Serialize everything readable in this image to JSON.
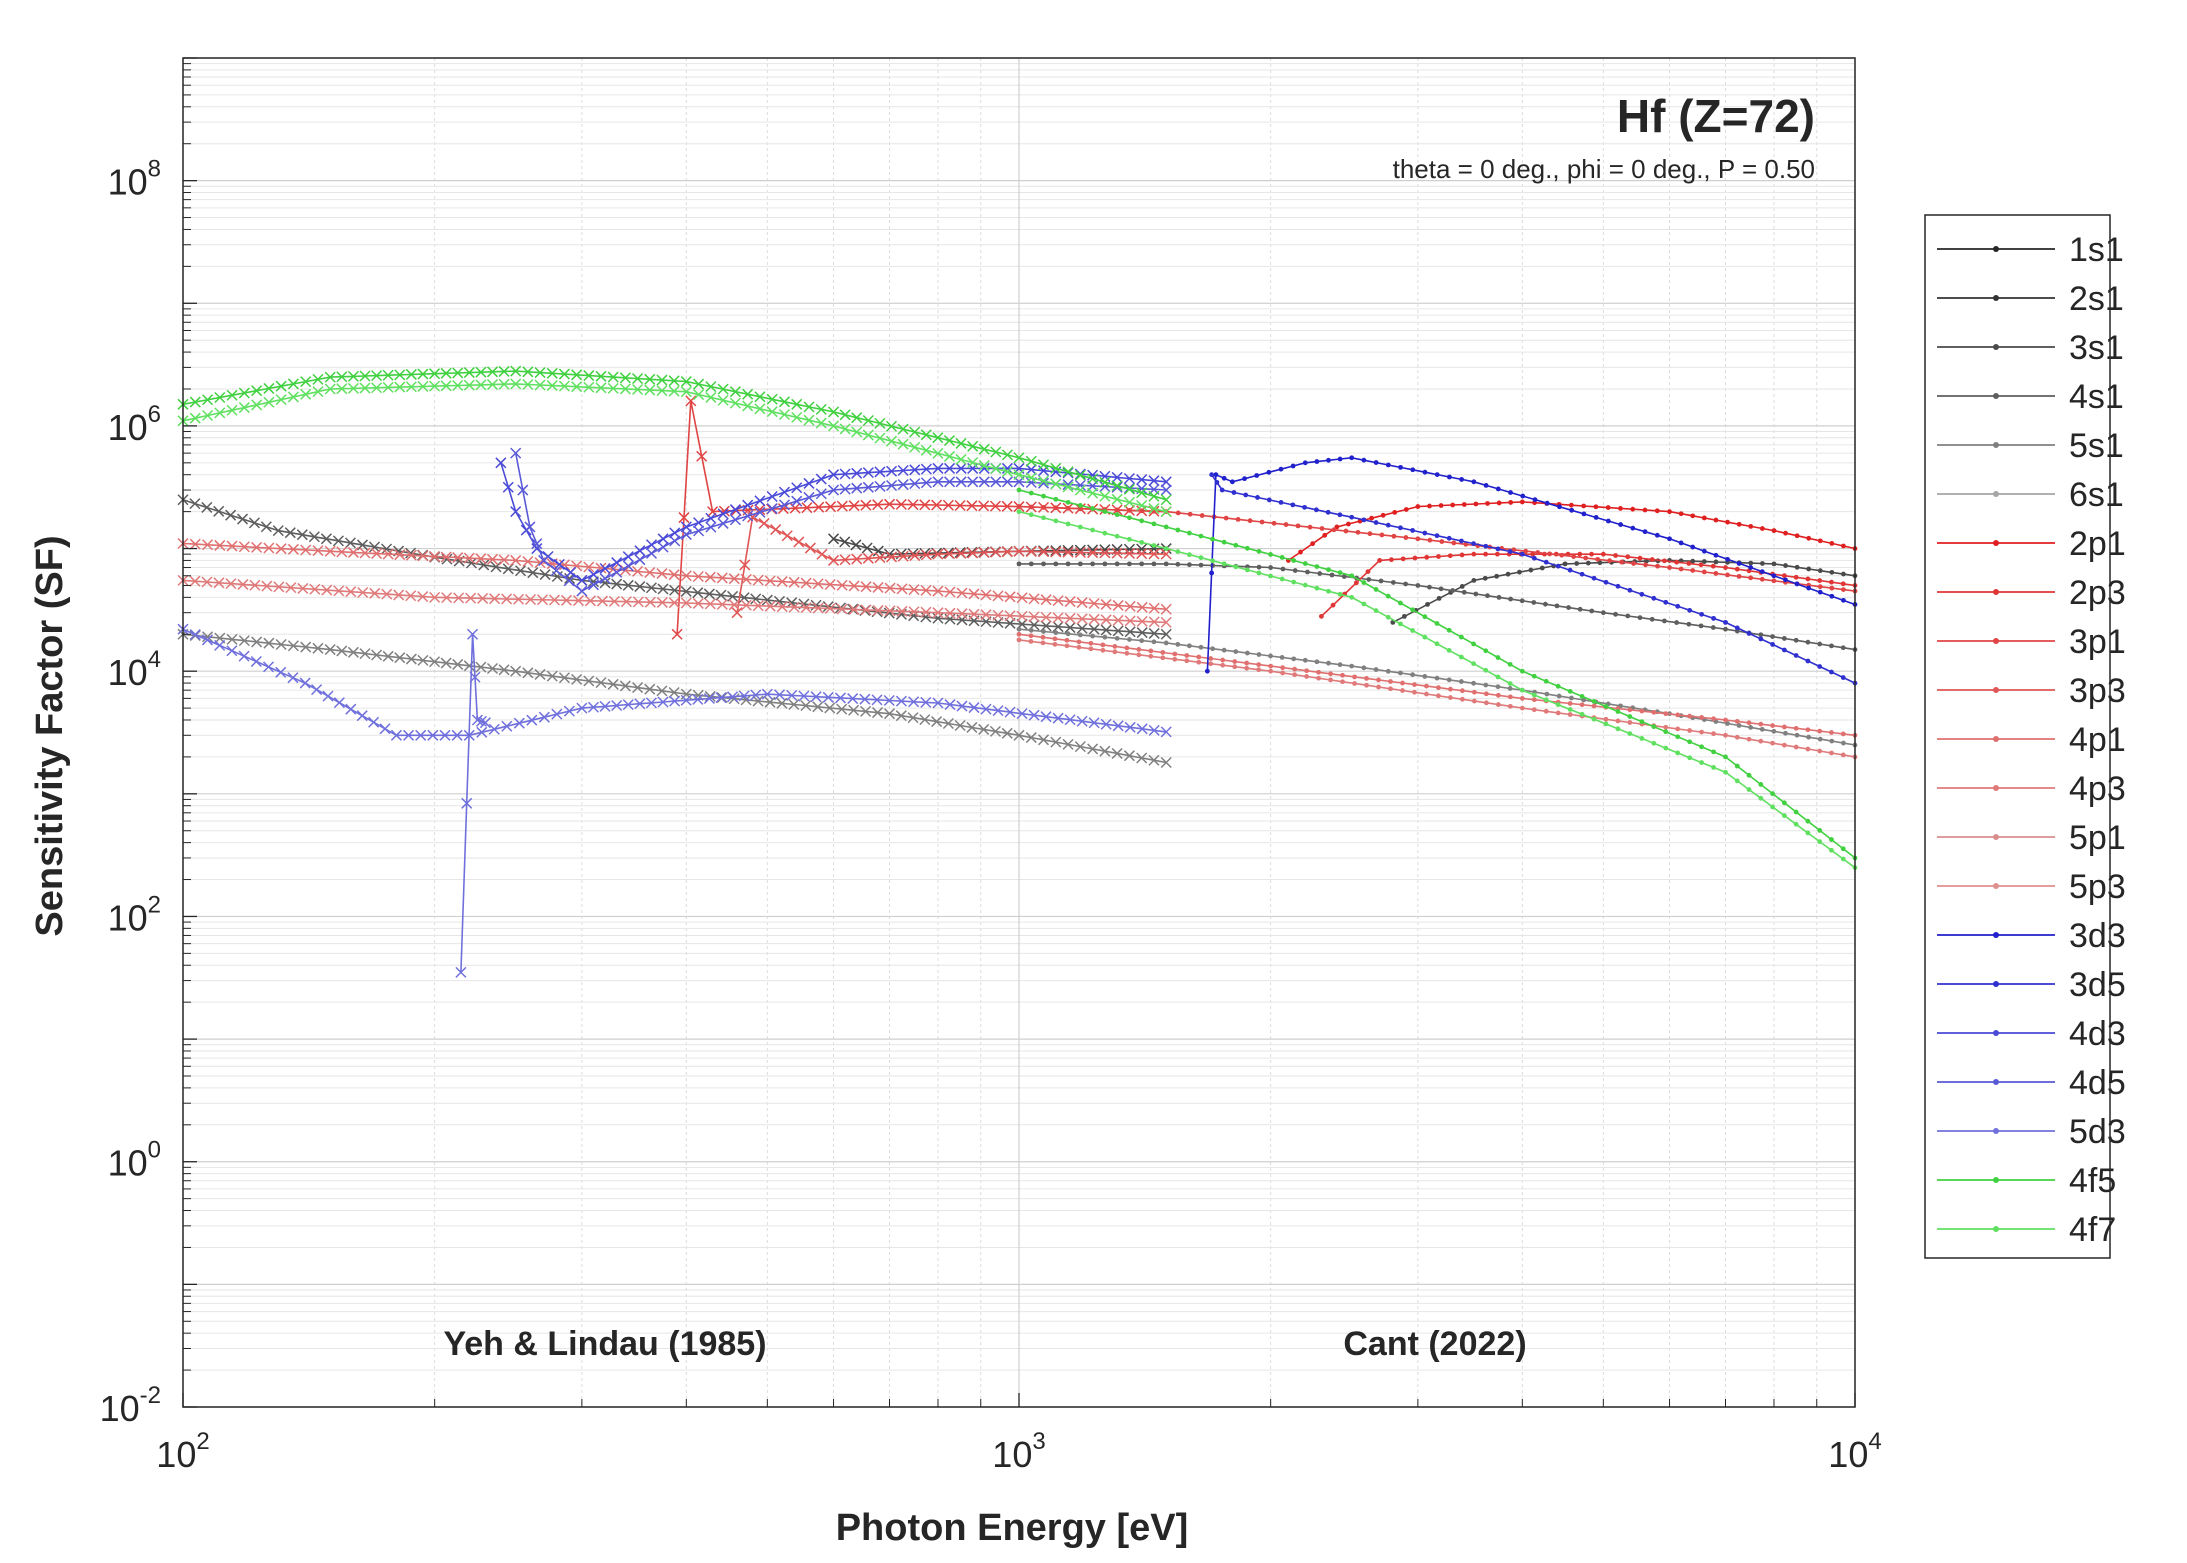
{
  "chart_data": {
    "type": "line",
    "title": "Hf (Z=72)",
    "subtitle": "theta = 0 deg., phi = 0 deg., P = 0.50",
    "xlabel": "Photon Energy [eV]",
    "ylabel": "Sensitivity Factor (SF)",
    "xscale": "log",
    "yscale": "log",
    "xlim": [
      100,
      10000
    ],
    "ylim": [
      0.01,
      1000000000
    ],
    "x_ticks": [
      {
        "value": 100,
        "base": "10",
        "exp": "2"
      },
      {
        "value": 1000,
        "base": "10",
        "exp": "3"
      },
      {
        "value": 10000,
        "base": "10",
        "exp": "4"
      }
    ],
    "y_ticks": [
      {
        "value": 0.01,
        "base": "10",
        "exp": "-2"
      },
      {
        "value": 1,
        "base": "10",
        "exp": "0"
      },
      {
        "value": 100,
        "base": "10",
        "exp": "2"
      },
      {
        "value": 10000,
        "base": "10",
        "exp": "4"
      },
      {
        "value": 1000000,
        "base": "10",
        "exp": "6"
      },
      {
        "value": 100000000,
        "base": "10",
        "exp": "8"
      }
    ],
    "grid": true,
    "legend_position": "right-outside",
    "annotations": [
      "Yeh & Lindau (1985)",
      "Cant (2022)"
    ],
    "series": [
      {
        "name": "1s1",
        "color": "#262626",
        "segments": []
      },
      {
        "name": "2s1",
        "color": "#333333",
        "segments": []
      },
      {
        "name": "3s1",
        "color": "#4a4a4a",
        "segments": [
          {
            "marker": "x",
            "x": [
              600,
              700,
              1000,
              1500
            ],
            "y": [
              120000,
              90000,
              95000,
              100000
            ]
          },
          {
            "marker": "dot",
            "x": [
              2800,
              3500,
              4500,
              6000,
              8000,
              10000
            ],
            "y": [
              25000,
              55000,
              75000,
              80000,
              75000,
              60000
            ]
          }
        ]
      },
      {
        "name": "4s1",
        "color": "#5e5e5e",
        "segments": [
          {
            "marker": "x",
            "x": [
              100,
              130,
              200,
              300,
              500,
              800,
              1500
            ],
            "y": [
              250000,
              140000,
              85000,
              55000,
              38000,
              27000,
              20000
            ]
          },
          {
            "marker": "dot",
            "x": [
              1000,
              1500,
              2000,
              3000,
              5000,
              7000,
              10000
            ],
            "y": [
              75000,
              75000,
              70000,
              50000,
              30000,
              22000,
              15000
            ]
          }
        ]
      },
      {
        "name": "5s1",
        "color": "#808080",
        "segments": [
          {
            "marker": "x",
            "x": [
              100,
              150,
              250,
              400,
              700,
              1000,
              1500
            ],
            "y": [
              20000,
              15000,
              10000,
              6500,
              4500,
              3000,
              1800
            ]
          },
          {
            "marker": "dot",
            "x": [
              1000,
              1500,
              2500,
              4000,
              6000,
              10000
            ],
            "y": [
              22000,
              17000,
              11000,
              7000,
              4500,
              2500
            ]
          }
        ]
      },
      {
        "name": "6s1",
        "color": "#a6a6a6",
        "segments": []
      },
      {
        "name": "2p1",
        "color": "#e02020",
        "segments": [
          {
            "marker": "dot",
            "x": [
              2100,
              2400,
              3000,
              4000,
              6000,
              8000,
              10000
            ],
            "y": [
              80000,
              150000,
              220000,
              240000,
              200000,
              140000,
              100000
            ]
          }
        ]
      },
      {
        "name": "2p3",
        "color": "#e03535",
        "segments": [
          {
            "marker": "dot",
            "x": [
              2300,
              2700,
              3500,
              5000,
              7000,
              10000
            ],
            "y": [
              28000,
              80000,
              90000,
              90000,
              70000,
              50000
            ]
          }
        ]
      },
      {
        "name": "3p1",
        "color": "#e04444",
        "segments": [
          {
            "marker": "x",
            "x": [
              390,
              405,
              430,
              700,
              1000,
              1500
            ],
            "y": [
              20000,
              1600000,
              200000,
              230000,
              220000,
              200000
            ]
          },
          {
            "marker": "dot",
            "x": [
              1000,
              1500,
              3000,
              6000,
              10000
            ],
            "y": [
              220000,
              200000,
              120000,
              70000,
              45000
            ]
          }
        ]
      },
      {
        "name": "3p3",
        "color": "#e05555",
        "segments": [
          {
            "marker": "x",
            "x": [
              460,
              480,
              600,
              800,
              1000,
              1500
            ],
            "y": [
              30000,
              180000,
              80000,
              90000,
              95000,
              90000
            ]
          }
        ]
      },
      {
        "name": "4p1",
        "color": "#e07070",
        "segments": [
          {
            "marker": "x",
            "x": [
              100,
              150,
              250,
              400,
              800,
              1500
            ],
            "y": [
              110000,
              95000,
              80000,
              60000,
              45000,
              32000
            ]
          },
          {
            "marker": "dot",
            "x": [
              1000,
              2000,
              4000,
              7000,
              10000
            ],
            "y": [
              20000,
              11000,
              6000,
              4000,
              3000
            ]
          }
        ]
      },
      {
        "name": "4p3",
        "color": "#e07a7a",
        "segments": [
          {
            "marker": "x",
            "x": [
              100,
              200,
              400,
              800,
              1500
            ],
            "y": [
              55000,
              40000,
              36000,
              30000,
              25000
            ]
          },
          {
            "marker": "dot",
            "x": [
              1000,
              2000,
              4000,
              7000,
              10000
            ],
            "y": [
              18000,
              10000,
              5000,
              3000,
              2000
            ]
          }
        ]
      },
      {
        "name": "5p1",
        "color": "#d98e8e",
        "segments": []
      },
      {
        "name": "5p3",
        "color": "#e08f8f",
        "segments": []
      },
      {
        "name": "3d3",
        "color": "#2020cc",
        "segments": [
          {
            "marker": "dot",
            "x": [
              1680,
              1720,
              1800,
              2200,
              2500,
              3500,
              6000,
              10000
            ],
            "y": [
              10000,
              400000,
              350000,
              500000,
              550000,
              350000,
              120000,
              35000
            ]
          }
        ]
      },
      {
        "name": "3d5",
        "color": "#3030d0",
        "segments": [
          {
            "marker": "dot",
            "x": [
              1700,
              1750,
              2500,
              4000,
              7000,
              10000
            ],
            "y": [
              400000,
              300000,
              180000,
              90000,
              25000,
              8000
            ]
          }
        ]
      },
      {
        "name": "4d3",
        "color": "#4a4ad8",
        "segments": [
          {
            "marker": "x",
            "x": [
              240,
              250,
              265,
              300,
              400,
              600,
              800,
              1000,
              1500
            ],
            "y": [
              500000,
              200000,
              100000,
              55000,
              150000,
              400000,
              450000,
              450000,
              350000
            ]
          }
        ]
      },
      {
        "name": "4d5",
        "color": "#5a5ad8",
        "segments": [
          {
            "marker": "x",
            "x": [
              250,
              260,
              270,
              300,
              400,
              600,
              800,
              1000,
              1500
            ],
            "y": [
              600000,
              150000,
              80000,
              45000,
              130000,
              300000,
              350000,
              350000,
              300000
            ]
          }
        ]
      },
      {
        "name": "5d3",
        "color": "#7070dd",
        "segments": [
          {
            "marker": "x",
            "x": [
              100,
              140,
              180,
              220,
              300,
              500,
              800,
              1500
            ],
            "y": [
              22000,
              8000,
              3000,
              3000,
              5000,
              6500,
              5500,
              3200
            ]
          },
          {
            "marker": "x",
            "x": [
              215,
              222,
              225,
              230
            ],
            "y": [
              35,
              20000,
              4000,
              3800
            ]
          }
        ]
      },
      {
        "name": "4f5",
        "color": "#40d040",
        "segments": [
          {
            "marker": "x",
            "x": [
              100,
              150,
              250,
              400,
              600,
              1000,
              1500
            ],
            "y": [
              1500000,
              2500000,
              2800000,
              2300000,
              1300000,
              550000,
              250000
            ]
          },
          {
            "marker": "dot",
            "x": [
              1000,
              1500,
              2500,
              4000,
              7000,
              10000
            ],
            "y": [
              300000,
              150000,
              60000,
              10000,
              2000,
              300
            ]
          }
        ]
      },
      {
        "name": "4f7",
        "color": "#60e060",
        "segments": [
          {
            "marker": "x",
            "x": [
              100,
              150,
              250,
              400,
              600,
              1000,
              1500
            ],
            "y": [
              1100000,
              2000000,
              2200000,
              1900000,
              1000000,
              400000,
              200000
            ]
          },
          {
            "marker": "dot",
            "x": [
              1000,
              1500,
              2500,
              4000,
              7000,
              10000
            ],
            "y": [
              200000,
              100000,
              40000,
              7000,
              1500,
              250
            ]
          }
        ]
      }
    ]
  }
}
